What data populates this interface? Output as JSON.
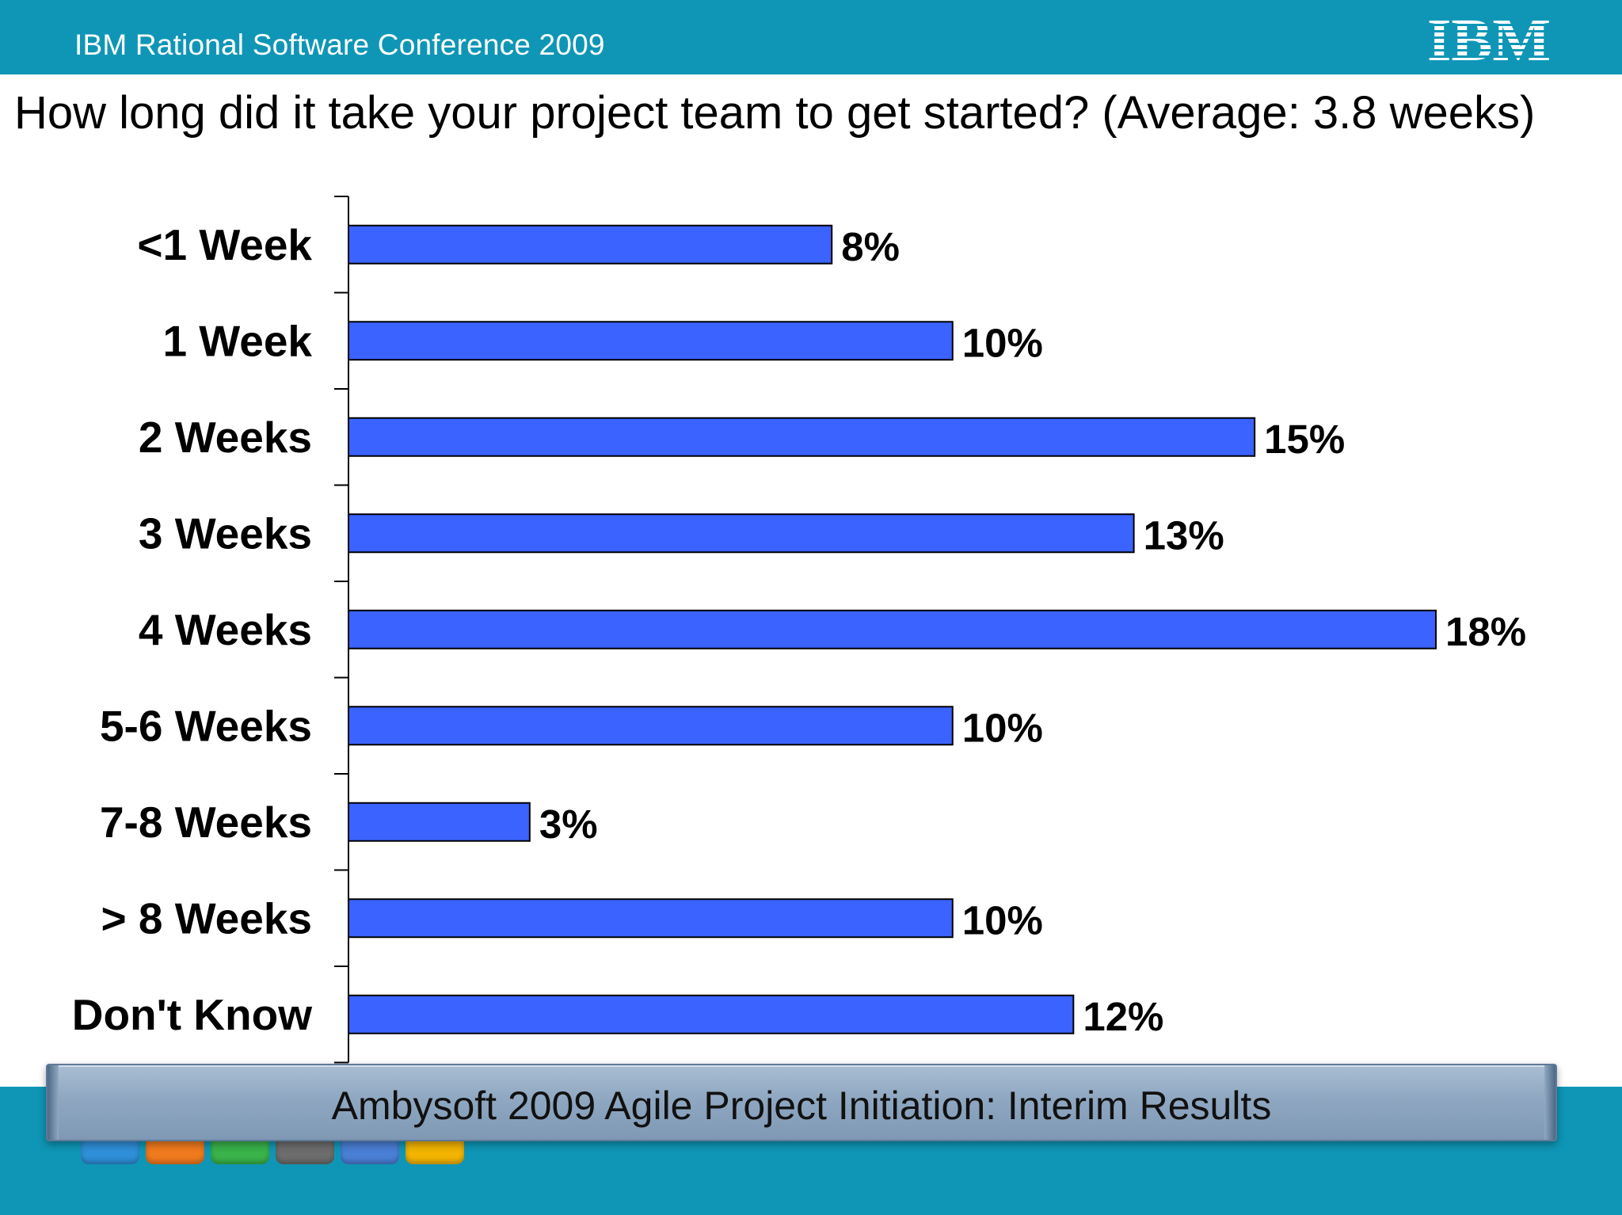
{
  "header": {
    "conference_title": "IBM Rational Software Conference 2009",
    "logo_text": "IBM"
  },
  "chart_data": {
    "type": "bar",
    "orientation": "horizontal",
    "title": "How long did it take your project team to get started? (Average: 3.8 weeks)",
    "categories": [
      "<1 Week",
      "1 Week",
      "2 Weeks",
      "3 Weeks",
      "4 Weeks",
      "5-6 Weeks",
      "7-8 Weeks",
      "> 8 Weeks",
      "Don't Know"
    ],
    "values": [
      8,
      10,
      15,
      13,
      18,
      10,
      3,
      10,
      12
    ],
    "value_labels": [
      "8%",
      "10%",
      "15%",
      "13%",
      "18%",
      "10%",
      "3%",
      "10%",
      "12%"
    ],
    "xlim": [
      0,
      18
    ],
    "grid": false,
    "bar_color": "#3a63ff"
  },
  "footer": {
    "caption": "Ambysoft 2009 Agile Project Initiation: Interim Results",
    "toolbar_icons": [
      "grid-icon",
      "presenter-icon",
      "notes-icon",
      "minimize-icon",
      "pen-icon",
      "pause-icon"
    ],
    "toolbar_colors": [
      "#2f8fd8",
      "#f07a1e",
      "#39b34a",
      "#6d6d6d",
      "#4a7fd6",
      "#f2b400"
    ]
  },
  "colors": {
    "header_bg": "#0f96b6",
    "bar_fill": "#3a63ff"
  }
}
